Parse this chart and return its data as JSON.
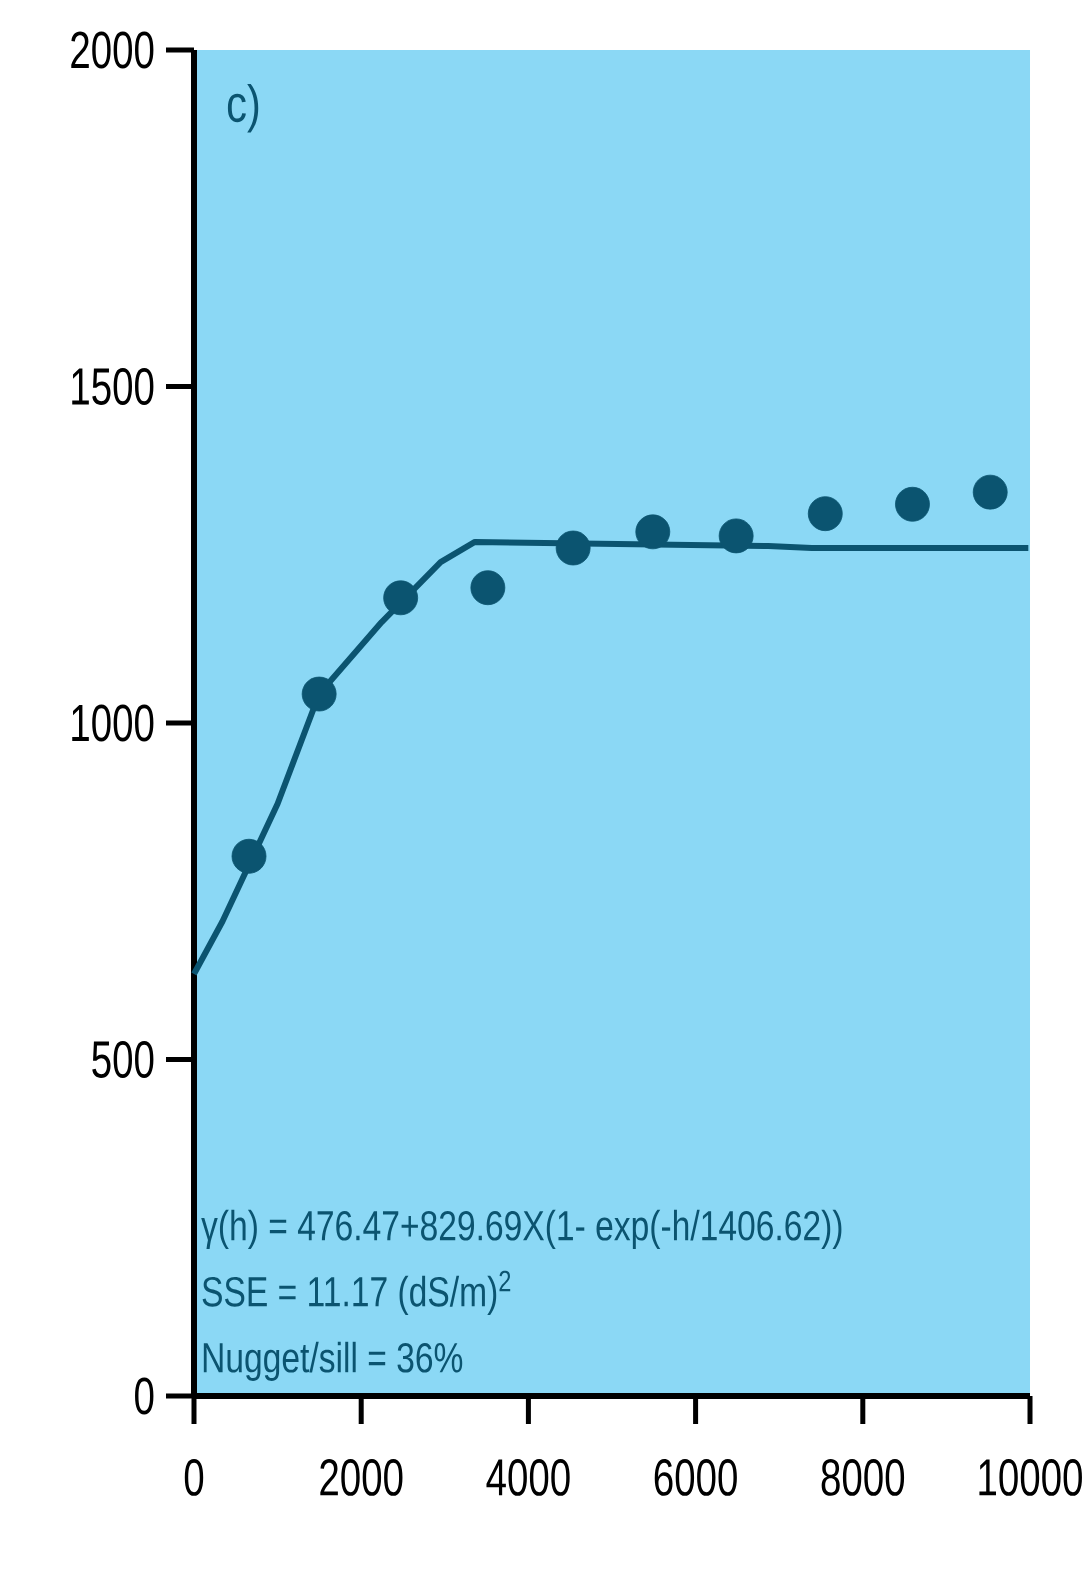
{
  "chart_data": {
    "type": "line",
    "xlim": [
      0,
      10000
    ],
    "ylim": [
      0,
      2000
    ],
    "xticks": [
      0,
      2000,
      4000,
      6000,
      8000,
      10000
    ],
    "yticks": [
      0,
      500,
      1000,
      1500,
      2000
    ],
    "series": [
      {
        "type": "scatter",
        "marker": "circle",
        "color": "#0b5470",
        "x": [
          658,
          1497,
          2472,
          3515,
          4535,
          5488,
          6485,
          7551,
          8594,
          9524
        ],
        "values": [
          802,
          1043,
          1186,
          1201,
          1260,
          1284,
          1278,
          1311,
          1325,
          1343
        ]
      },
      {
        "color": "#0b5470",
        "x": [
          0,
          340,
          1000,
          1497,
          2245,
          2950,
          3360,
          6870,
          7390,
          9980
        ],
        "values": [
          627,
          705,
          880,
          1043,
          1150,
          1239,
          1269,
          1263,
          1260,
          1260
        ]
      }
    ],
    "annotations": [
      "c)",
      "γ(h) = 476.47+829.69X(1- exp(-h/1406.62))",
      "SSE = 11.17 (dS/m)$^{2}$",
      "Nugget/sill = 36%"
    ]
  }
}
